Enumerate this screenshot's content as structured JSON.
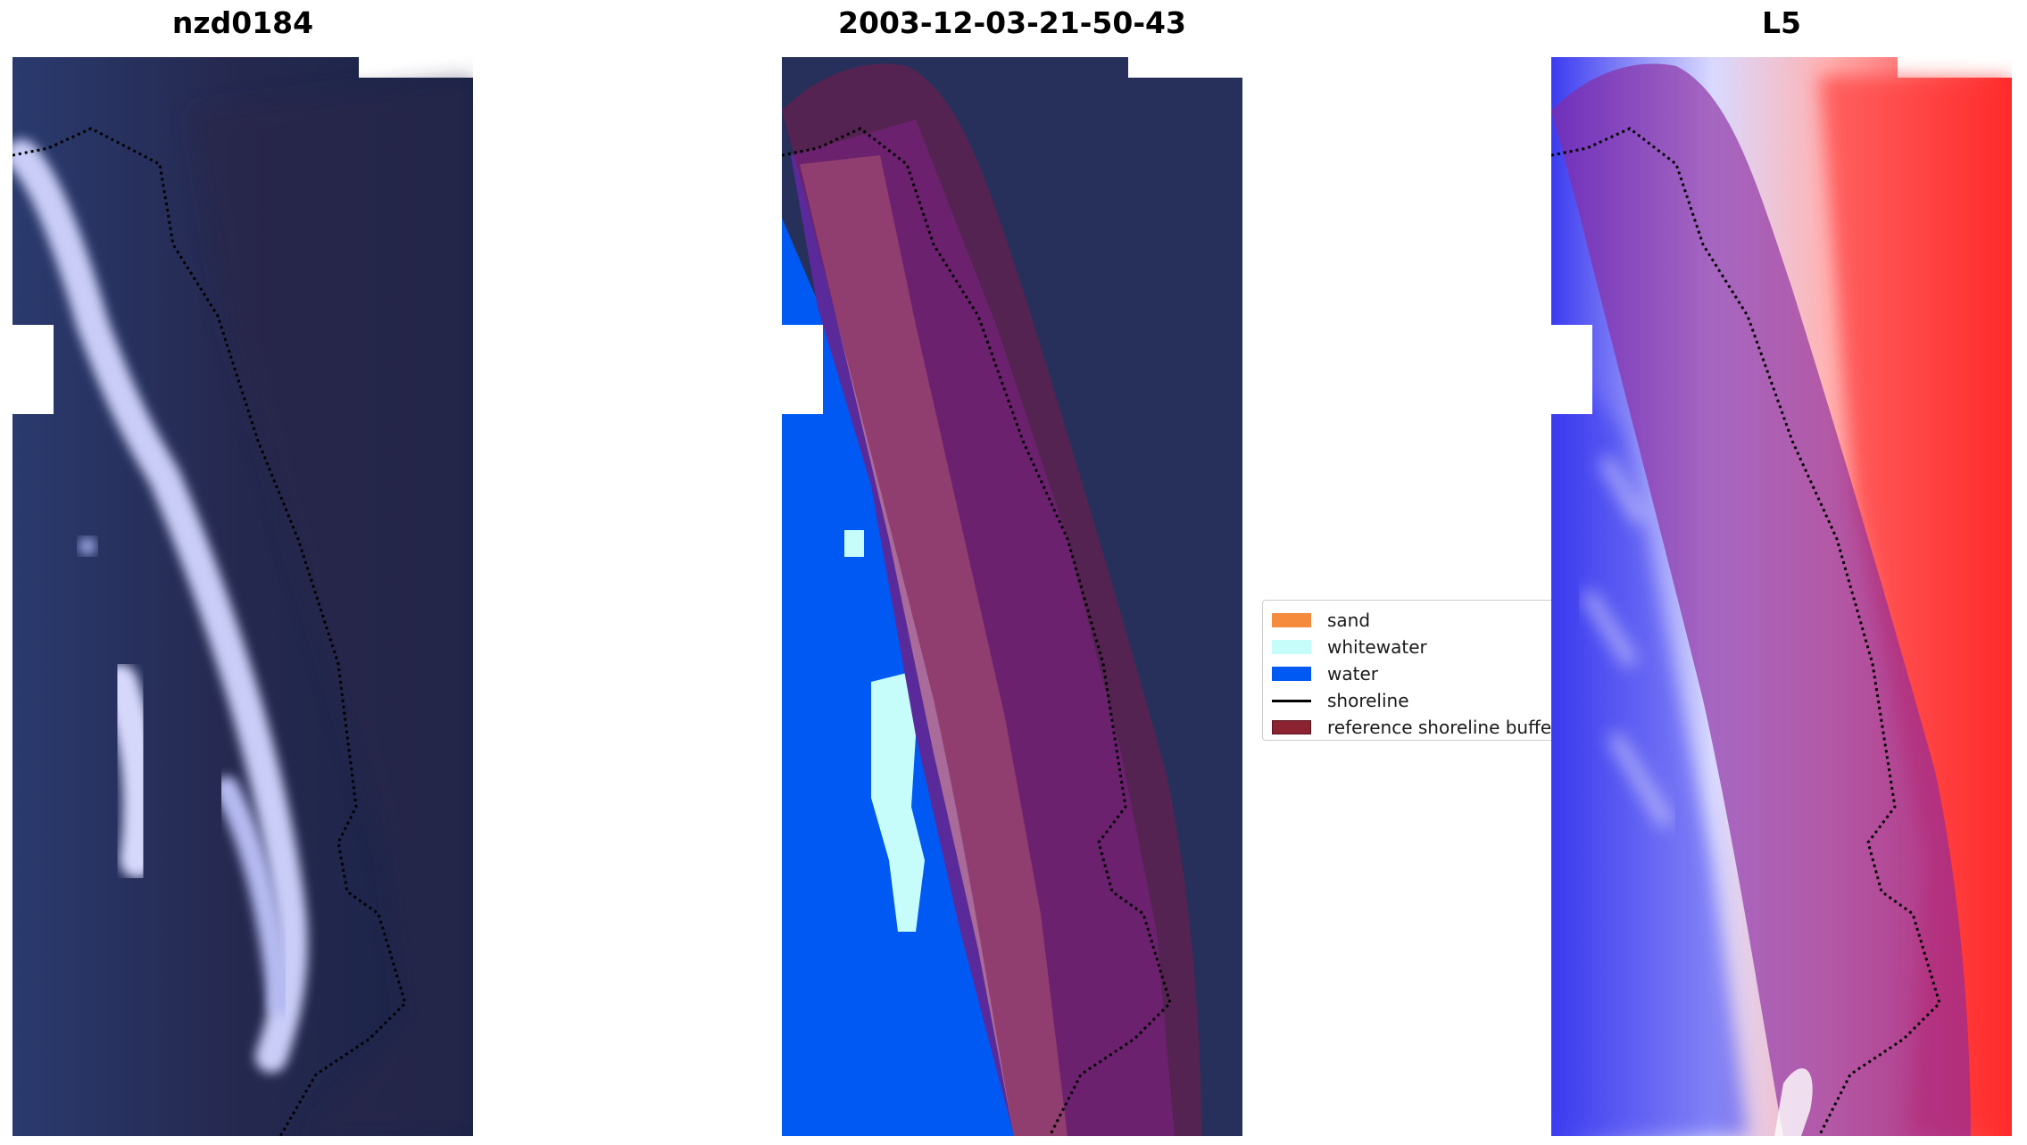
{
  "panels": [
    {
      "title": "nzd0184"
    },
    {
      "title": "2003-12-03-21-50-43"
    },
    {
      "title": "L5"
    }
  ],
  "legend": {
    "items": [
      {
        "label": "sand",
        "color": "#f58b3c",
        "kind": "patch"
      },
      {
        "label": "whitewater",
        "color": "#c6fdfb",
        "kind": "patch"
      },
      {
        "label": "water",
        "color": "#0059f2",
        "kind": "patch"
      },
      {
        "label": "shoreline",
        "color": "#000000",
        "kind": "line"
      },
      {
        "label": "reference shoreline buffer",
        "color": "#8b2331",
        "kind": "patch"
      }
    ]
  },
  "colors": {
    "rgb_background": "#1c2547",
    "whitewater_streak": "#b8bdf2",
    "classified_buffer": "#7a1a4c",
    "classified_sand_overlay": "#a86b9a",
    "classified_purple": "#5b2a9a",
    "index_red": "#ff2a2a",
    "index_blue": "#3b3bf0",
    "index_buffer": "#8a2aa0"
  }
}
